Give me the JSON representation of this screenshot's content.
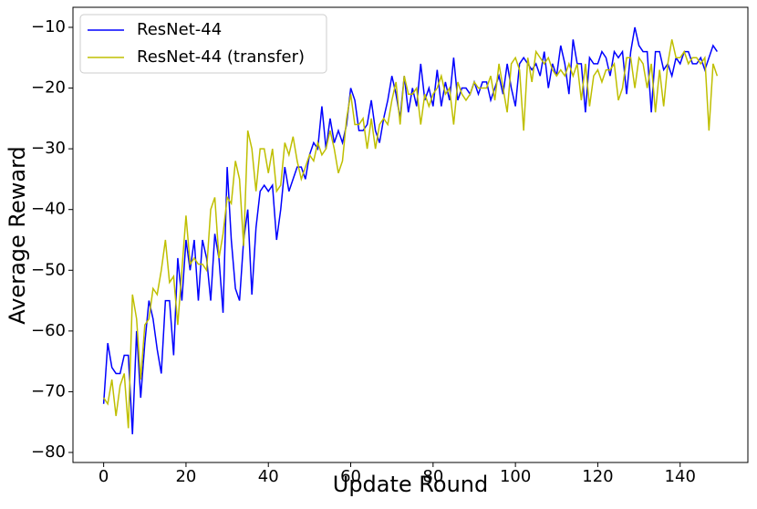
{
  "chart_data": {
    "type": "line",
    "xlabel": "Update Round",
    "ylabel": "Average Reward",
    "legend": "upper left",
    "x": [
      0,
      1,
      2,
      3,
      4,
      5,
      6,
      7,
      8,
      9,
      10,
      11,
      12,
      13,
      14,
      15,
      16,
      17,
      18,
      19,
      20,
      21,
      22,
      23,
      24,
      25,
      26,
      27,
      28,
      29,
      30,
      31,
      32,
      33,
      34,
      35,
      36,
      37,
      38,
      39,
      40,
      41,
      42,
      43,
      44,
      45,
      46,
      47,
      48,
      49,
      50,
      51,
      52,
      53,
      54,
      55,
      56,
      57,
      58,
      59,
      60,
      61,
      62,
      63,
      64,
      65,
      66,
      67,
      68,
      69,
      70,
      71,
      72,
      73,
      74,
      75,
      76,
      77,
      78,
      79,
      80,
      81,
      82,
      83,
      84,
      85,
      86,
      87,
      88,
      89,
      90,
      91,
      92,
      93,
      94,
      95,
      96,
      97,
      98,
      99,
      100,
      101,
      102,
      103,
      104,
      105,
      106,
      107,
      108,
      109,
      110,
      111,
      112,
      113,
      114,
      115,
      116,
      117,
      118,
      119,
      120,
      121,
      122,
      123,
      124,
      125,
      126,
      127,
      128,
      129,
      130,
      131,
      132,
      133,
      134,
      135,
      136,
      137,
      138,
      139,
      140,
      141,
      142,
      143,
      144,
      145,
      146,
      147,
      148,
      149
    ],
    "series": [
      {
        "name": "ResNet-44",
        "color": "#0000ff",
        "values": [
          -72,
          -62,
          -66,
          -67,
          -67,
          -64,
          -64,
          -77,
          -60,
          -71,
          -62,
          -55,
          -58,
          -63,
          -67,
          -55,
          -55,
          -64,
          -48,
          -55,
          -45,
          -50,
          -45,
          -55,
          -45,
          -48,
          -55,
          -44,
          -48,
          -57,
          -33,
          -45,
          -53,
          -55,
          -45,
          -40,
          -54,
          -43,
          -37,
          -36,
          -37,
          -36,
          -45,
          -40,
          -33,
          -37,
          -35,
          -33,
          -33,
          -35,
          -31,
          -29,
          -30,
          -23,
          -30,
          -25,
          -29,
          -27,
          -29,
          -26,
          -20,
          -22,
          -27,
          -27,
          -26,
          -22,
          -27,
          -29,
          -25,
          -22,
          -18,
          -21,
          -25,
          -18,
          -24,
          -20,
          -23,
          -16,
          -22,
          -20,
          -23,
          -17,
          -23,
          -19,
          -22,
          -15,
          -22,
          -20,
          -20,
          -21,
          -19,
          -21,
          -19,
          -19,
          -22,
          -20,
          -18,
          -21,
          -16,
          -20,
          -23,
          -16,
          -15,
          -16,
          -17,
          -16,
          -18,
          -14,
          -20,
          -16,
          -18,
          -13,
          -16,
          -21,
          -12,
          -16,
          -16,
          -24,
          -15,
          -16,
          -16,
          -14,
          -15,
          -18,
          -14,
          -15,
          -14,
          -21,
          -14,
          -10,
          -13,
          -14,
          -14,
          -24,
          -14,
          -14,
          -17,
          -16,
          -18,
          -15,
          -16,
          -14,
          -14,
          -16,
          -16,
          -15,
          -17,
          -15,
          -13,
          -14
        ]
      },
      {
        "name": "ResNet-44 (transfer)",
        "color": "#bfbf00",
        "values": [
          -71,
          -72,
          -68,
          -74,
          -69,
          -67,
          -76,
          -54,
          -58,
          -68,
          -59,
          -58,
          -53,
          -54,
          -50,
          -45,
          -52,
          -51,
          -59,
          -50,
          -41,
          -49,
          -48,
          -49,
          -49,
          -50,
          -40,
          -38,
          -48,
          -44,
          -38,
          -39,
          -32,
          -35,
          -46,
          -27,
          -30,
          -37,
          -30,
          -30,
          -34,
          -30,
          -37,
          -36,
          -29,
          -31,
          -28,
          -32,
          -35,
          -33,
          -31,
          -32,
          -29,
          -31,
          -30,
          -27,
          -30,
          -34,
          -32,
          -25,
          -21,
          -26,
          -26,
          -25,
          -30,
          -25,
          -30,
          -26,
          -25,
          -26,
          -22,
          -19,
          -26,
          -18,
          -21,
          -21,
          -20,
          -26,
          -21,
          -23,
          -21,
          -20,
          -18,
          -21,
          -20,
          -26,
          -19,
          -21,
          -22,
          -21,
          -19,
          -20,
          -20,
          -20,
          -18,
          -22,
          -16,
          -20,
          -24,
          -16,
          -15,
          -17,
          -27,
          -15,
          -19,
          -14,
          -15,
          -16,
          -15,
          -17,
          -18,
          -17,
          -18,
          -16,
          -18,
          -16,
          -22,
          -16,
          -23,
          -18,
          -17,
          -19,
          -17,
          -17,
          -16,
          -22,
          -20,
          -15,
          -15,
          -20,
          -15,
          -16,
          -20,
          -16,
          -24,
          -17,
          -23,
          -16,
          -12,
          -15,
          -15,
          -14,
          -16,
          -15,
          -15,
          -16,
          -15,
          -27,
          -16,
          -18
        ]
      }
    ],
    "xlim": [
      -7.45,
      156.45
    ],
    "ylim": [
      -81.65,
      -6.7
    ],
    "xticks": [
      0,
      20,
      40,
      60,
      80,
      100,
      120,
      140
    ],
    "yticks": [
      {
        "value": -80,
        "label": "−80"
      },
      {
        "value": -70,
        "label": "−70"
      },
      {
        "value": -60,
        "label": "−60"
      },
      {
        "value": -50,
        "label": "−50"
      },
      {
        "value": -40,
        "label": "−40"
      },
      {
        "value": -30,
        "label": "−30"
      },
      {
        "value": -20,
        "label": "−20"
      },
      {
        "value": -10,
        "label": "−10"
      }
    ]
  }
}
